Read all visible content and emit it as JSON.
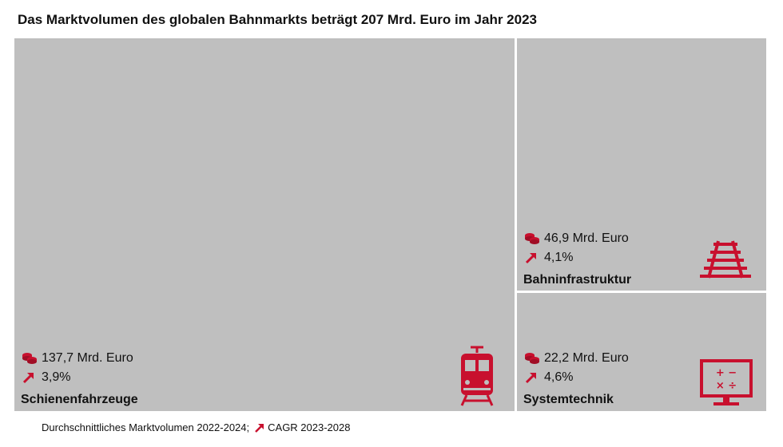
{
  "title": "Das Marktvolumen des globalen Bahnmarkts beträgt 207 Mrd. Euro im Jahr 2023",
  "footer": {
    "volume_note": "Durchschnittliches Marktvolumen 2022-2024;",
    "cagr_note": "CAGR 2023-2028"
  },
  "colors": {
    "tile": "#bfbfbf",
    "accent": "#c8102e"
  },
  "segments": [
    {
      "name": "Schienenfahrzeuge",
      "volume": "137,7 Mrd. Euro",
      "cagr": "3,9%",
      "icon": "train-icon"
    },
    {
      "name": "Bahninfrastruktur",
      "volume": "46,9 Mrd. Euro",
      "cagr": "4,1%",
      "icon": "rail-track-icon"
    },
    {
      "name": "Systemtechnik",
      "volume": "22,2 Mrd. Euro",
      "cagr": "4,6%",
      "icon": "control-panel-icon"
    }
  ],
  "chart_data": {
    "type": "treemap",
    "title": "Das Marktvolumen des globalen Bahnmarkts beträgt 207 Mrd. Euro im Jahr 2023",
    "unit": "Mrd. Euro",
    "categories": [
      "Schienenfahrzeuge",
      "Bahninfrastruktur",
      "Systemtechnik"
    ],
    "values": [
      137.7,
      46.9,
      22.2
    ],
    "cagr_percent": [
      3.9,
      4.1,
      4.6
    ],
    "total": 207
  }
}
